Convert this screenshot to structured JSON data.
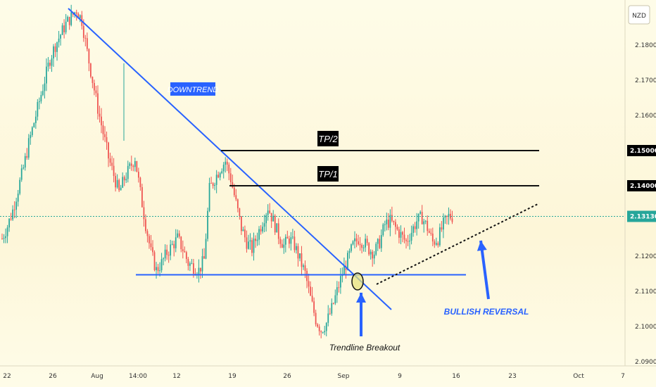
{
  "chart_data": {
    "type": "candlestick",
    "currency_label": "NZD",
    "y_ticks": [
      "2.18000",
      "2.17000",
      "2.16000",
      "2.15000",
      "2.14000",
      "2.12000",
      "2.11000",
      "2.10000",
      "2.09000"
    ],
    "x_ticks": [
      "22",
      "26",
      "Aug",
      "14:00",
      "12",
      "19",
      "26",
      "Sep",
      "9",
      "16",
      "23",
      "Oct",
      "7"
    ],
    "current_price": "2.13130",
    "levels": [
      {
        "label": "TP/1",
        "price": 2.14
      },
      {
        "label": "TP/2",
        "price": 2.15
      }
    ],
    "highlight_prices": [
      "2.15000",
      "2.14000"
    ],
    "support_price": 2.1147,
    "downtrend_label": "DOWNTREND",
    "breakout_label": "Trendline Breakout",
    "reversal_label": "BULLISH REVERSAL",
    "price_path": [
      2.125,
      2.1285,
      2.133,
      2.139,
      2.145,
      2.152,
      2.158,
      2.164,
      2.17,
      2.176,
      2.18,
      2.183,
      2.186,
      2.188,
      2.19,
      2.187,
      2.178,
      2.17,
      2.162,
      2.155,
      2.148,
      2.143,
      2.138,
      2.142,
      2.145,
      2.148,
      2.138,
      2.129,
      2.121,
      2.116,
      2.118,
      2.121,
      2.123,
      2.125,
      2.122,
      2.118,
      2.117,
      2.116,
      2.119,
      2.139,
      2.142,
      2.145,
      2.147,
      2.142,
      2.135,
      2.128,
      2.124,
      2.122,
      2.126,
      2.13,
      2.134,
      2.13,
      2.126,
      2.123,
      2.125,
      2.123,
      2.119,
      2.115,
      2.108,
      2.102,
      2.099,
      2.101,
      2.105,
      2.11,
      2.115,
      2.119,
      2.123,
      2.125,
      2.124,
      2.122,
      2.121,
      2.124,
      2.129,
      2.13,
      2.128,
      2.126,
      2.124,
      2.127,
      2.13,
      2.131,
      2.128,
      2.124,
      2.125,
      2.129,
      2.1313
    ]
  }
}
